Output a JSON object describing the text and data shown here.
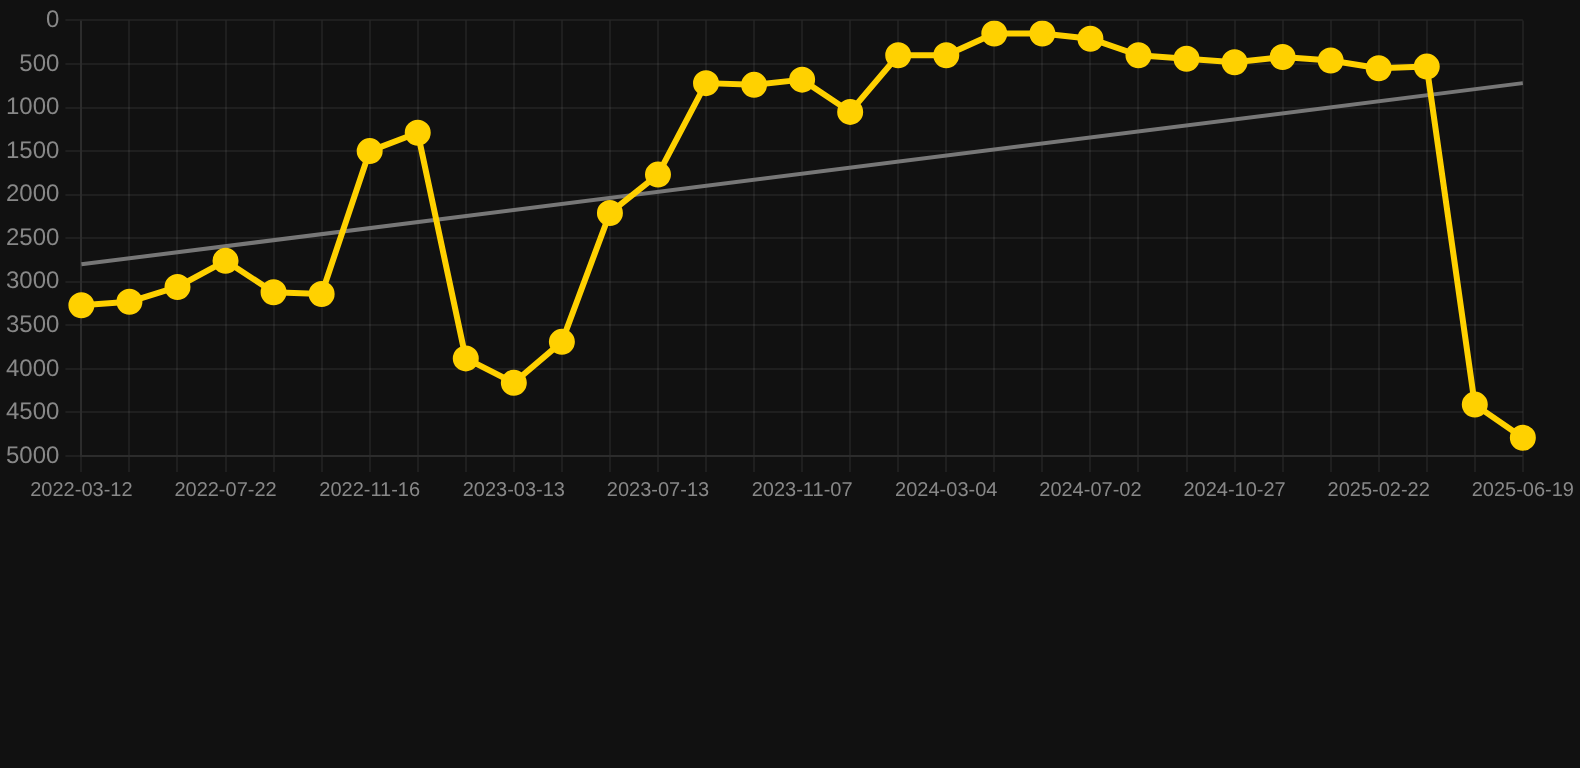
{
  "chart_data": {
    "type": "line",
    "categories": [
      "2022-03-12",
      null,
      null,
      "2022-07-22",
      null,
      null,
      "2022-11-16",
      null,
      null,
      "2023-03-13",
      null,
      null,
      "2023-07-13",
      null,
      null,
      "2023-11-07",
      null,
      null,
      "2024-03-04",
      null,
      null,
      "2024-07-02",
      null,
      null,
      "2024-10-27",
      null,
      null,
      "2025-02-22",
      null,
      null,
      "2025-06-19"
    ],
    "series": [
      {
        "color": "#ffd100",
        "marker": "circle",
        "values": [
          3270,
          3230,
          3060,
          2760,
          3120,
          3140,
          1500,
          1290,
          3880,
          4160,
          3690,
          2210,
          1770,
          720,
          740,
          680,
          1050,
          400,
          400,
          150,
          150,
          210,
          400,
          440,
          480,
          420,
          460,
          550,
          530,
          4410,
          4790
        ]
      },
      {
        "color": "#777777",
        "marker": "none",
        "values": [
          2800,
          null,
          null,
          null,
          null,
          null,
          null,
          null,
          null,
          null,
          null,
          null,
          null,
          null,
          null,
          null,
          null,
          null,
          null,
          null,
          null,
          null,
          null,
          null,
          null,
          null,
          null,
          null,
          null,
          null,
          720
        ]
      }
    ],
    "ylim": [
      5000,
      0
    ],
    "yticks": [
      0,
      500,
      1000,
      1500,
      2000,
      2500,
      3000,
      3500,
      4000,
      4500,
      5000
    ],
    "grid": true,
    "legend": false
  }
}
